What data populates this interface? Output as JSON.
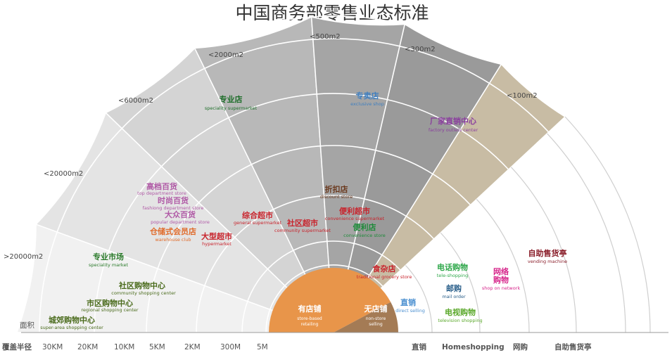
{
  "title": "中国商务部零售业态标准",
  "area_labels": [
    ">20000m2",
    "<20000m2",
    "<6000m2",
    "<2000m2",
    "<500m2",
    "<300m2",
    "<100m2"
  ],
  "left_axis": {
    "area": "面积",
    "radius": "覆盖半径",
    "ticks": [
      "30KM",
      "20KM",
      "10KM",
      "5KM",
      "2KM",
      "300M",
      "5M"
    ]
  },
  "right_axis": {
    "ticks": [
      "直销",
      "Homeshopping",
      "网购",
      "自助售货亭"
    ]
  },
  "hub": {
    "store": {
      "cn": "有店铺",
      "en1": "store-based",
      "en2": "retailing"
    },
    "nonstore": {
      "cn": "无店铺",
      "en1": "non-store",
      "en2": "selling"
    }
  },
  "formats": [
    {
      "cn": "专业店",
      "en": "speciality supermarket",
      "color": "#1e6e2a"
    },
    {
      "cn": "专卖店",
      "en": "exclusive shop",
      "color": "#3f7fc0"
    },
    {
      "cn": "厂家直销中心",
      "en": "factory outlets center",
      "color": "#8a3f9e"
    },
    {
      "cn": "折扣店",
      "en": "discount store",
      "color": "#6b3a1f"
    },
    {
      "cn": "高档百货",
      "en": "top department store",
      "color": "#b05aa6"
    },
    {
      "cn": "时尚百货",
      "en": "fashiong department store",
      "color": "#b05aa6"
    },
    {
      "cn": "大众百货",
      "en": "popular department store",
      "color": "#b05aa6"
    },
    {
      "cn": "仓储式会员店",
      "en": "warehouse club",
      "color": "#e06b2b"
    },
    {
      "cn": "大型超市",
      "en": "hypermarket",
      "color": "#c8232c"
    },
    {
      "cn": "综合超市",
      "en": "general supermarket",
      "color": "#c8232c"
    },
    {
      "cn": "社区超市",
      "en": "community supermarket",
      "color": "#c8232c"
    },
    {
      "cn": "便利超市",
      "en": "convenience supermarket",
      "color": "#c8232c"
    },
    {
      "cn": "便利店",
      "en": "convenience store",
      "color": "#1e8a3a"
    },
    {
      "cn": "食杂店",
      "en": "traditional grocery store",
      "color": "#c8232c"
    },
    {
      "cn": "专业市场",
      "en": "speciality market",
      "color": "#2a7a2a"
    },
    {
      "cn": "社区购物中心",
      "en": "community shopping center",
      "color": "#4a6b1c"
    },
    {
      "cn": "市区购物中心",
      "en": "regional shopping center",
      "color": "#4a6b1c"
    },
    {
      "cn": "城郊购物中心",
      "en": "super-area shopping center",
      "color": "#4a6b1c"
    },
    {
      "cn": "直销",
      "en": "direct selling",
      "color": "#4a8fd0"
    },
    {
      "cn": "电话购物",
      "en": "tele-shopping",
      "color": "#2ea84a"
    },
    {
      "cn": "邮购",
      "en": "mail order",
      "color": "#2a5f8a"
    },
    {
      "cn": "电视购物",
      "en": "television shopping",
      "color": "#5aa82a"
    },
    {
      "cn": "网络购物",
      "en": "shop on network",
      "color": "#d6248a"
    },
    {
      "cn": "自助售货亭",
      "en": "vending machine",
      "color": "#8a1e2a"
    }
  ]
}
